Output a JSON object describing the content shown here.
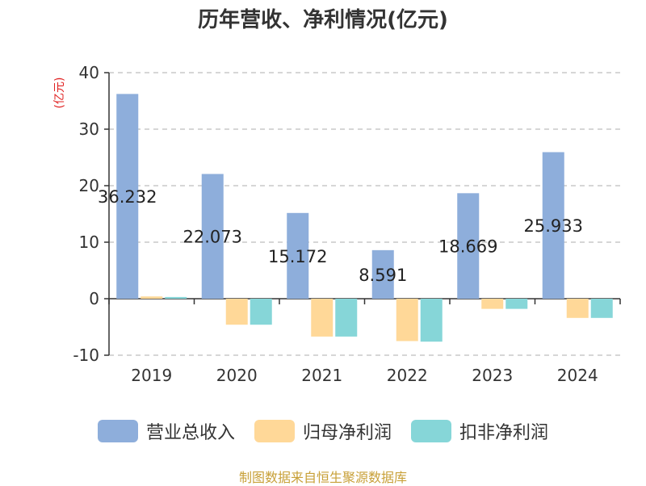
{
  "chart_data": {
    "type": "bar",
    "title": "历年营收、净利情况(亿元)",
    "ylabel": "(亿元)",
    "ylim": [
      -10,
      40
    ],
    "yticks": [
      -10,
      0,
      10,
      20,
      30,
      40
    ],
    "grid": true,
    "legend_position": "bottom",
    "categories": [
      "2019",
      "2020",
      "2021",
      "2022",
      "2023",
      "2024"
    ],
    "series": [
      {
        "name": "营业总收入",
        "color": "#8eaedb",
        "values": [
          36.232,
          22.073,
          15.172,
          8.591,
          18.669,
          25.933
        ],
        "labels": [
          "36.232",
          "22.073",
          "15.172",
          "8.591",
          "18.669",
          "25.933"
        ]
      },
      {
        "name": "归母净利润",
        "color": "#ffd898",
        "values": [
          0.4,
          -4.6,
          -6.7,
          -7.5,
          -1.8,
          -3.4
        ]
      },
      {
        "name": "扣非净利润",
        "color": "#86d6d8",
        "values": [
          0.3,
          -4.6,
          -6.7,
          -7.6,
          -1.8,
          -3.4
        ]
      }
    ]
  },
  "source": "制图数据来自恒生聚源数据库"
}
